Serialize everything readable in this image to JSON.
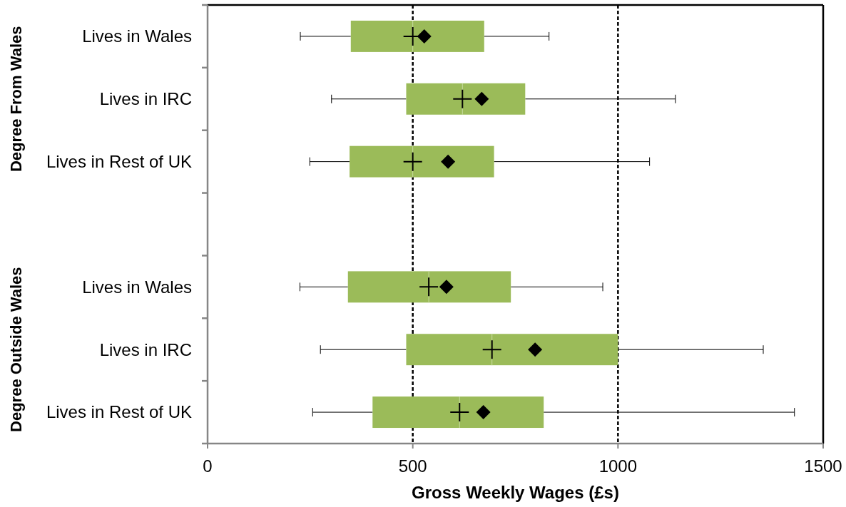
{
  "chart_data": {
    "type": "box",
    "orientation": "horizontal",
    "xlabel": "Gross Weekly Wages (£s)",
    "categories": [
      "Lives in Wales",
      "Lives in IRC",
      "Lives in Rest of UK",
      null,
      "Lives in Wales",
      "Lives in IRC",
      "Lives in Rest of UK"
    ],
    "color": "#9bbb59",
    "boxes": [
      {
        "low": 226,
        "q1": 349,
        "median": 500,
        "q3": 674,
        "high": 832,
        "mean": 528
      },
      {
        "low": 302,
        "q1": 484,
        "median": 621,
        "q3": 774,
        "high": 1140,
        "mean": 668
      },
      {
        "low": 249,
        "q1": 346,
        "median": 500,
        "q3": 698,
        "high": 1077,
        "mean": 586
      },
      null,
      {
        "low": 225,
        "q1": 342,
        "median": 539,
        "q3": 739,
        "high": 963,
        "mean": 582
      },
      {
        "low": 275,
        "q1": 484,
        "median": 693,
        "q3": 1000,
        "high": 1354,
        "mean": 798
      },
      {
        "low": 256,
        "q1": 402,
        "median": 614,
        "q3": 819,
        "high": 1430,
        "mean": 672
      }
    ],
    "xlim": [
      0,
      1500
    ],
    "xticks": [
      0,
      500,
      1000,
      1500
    ],
    "ref_lines": [
      {
        "axis": "x",
        "value": 500,
        "line_style": "dashed",
        "color": "#000000"
      },
      {
        "axis": "x",
        "value": 1000,
        "line_style": "dashed",
        "color": "#000000"
      }
    ],
    "annotations": [
      "Degree From Wales",
      "Degree Outside Wales"
    ],
    "grid": false,
    "legend": false
  }
}
